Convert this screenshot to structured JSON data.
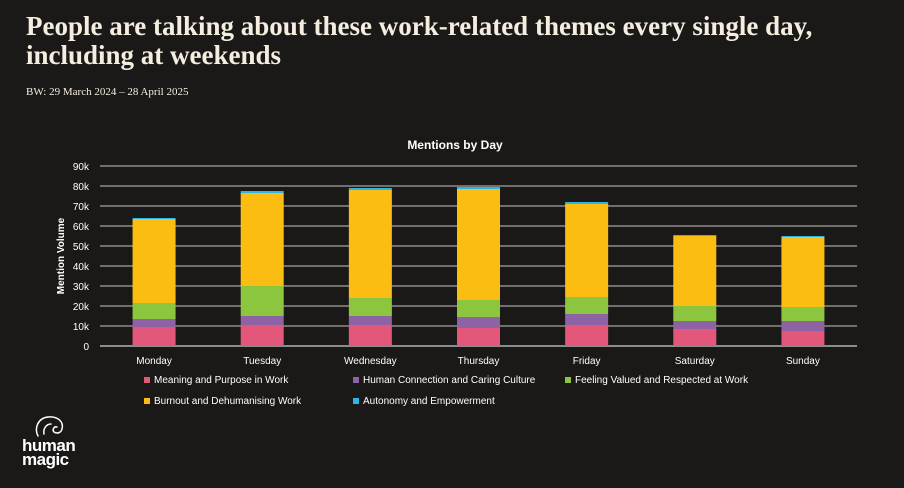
{
  "header": {
    "title": "People are talking about these work-related themes every single day, including at weekends",
    "subtitle": "BW: 29 March 2024 – 28 April 2025"
  },
  "logo": {
    "line1": "human",
    "line2": "magic"
  },
  "chart_data": {
    "type": "bar",
    "stacked": true,
    "title": "Mentions by Day",
    "ylabel": "Mention Volume",
    "xlabel": "",
    "ylim": [
      0,
      90000
    ],
    "yticks": [
      0,
      10000,
      20000,
      30000,
      40000,
      50000,
      60000,
      70000,
      80000,
      90000
    ],
    "ytick_labels": [
      "0",
      "10k",
      "20k",
      "30k",
      "40k",
      "50k",
      "60k",
      "70k",
      "80k",
      "90k"
    ],
    "grid": true,
    "legend_position": "bottom",
    "categories": [
      "Monday",
      "Tuesday",
      "Wednesday",
      "Thursday",
      "Friday",
      "Saturday",
      "Sunday"
    ],
    "series": [
      {
        "name": "Meaning and Purpose in Work",
        "color": "#e2577a",
        "values": [
          9500,
          10500,
          10500,
          9000,
          10500,
          8500,
          7500
        ]
      },
      {
        "name": "Human Connection and Caring Culture",
        "color": "#8d63a6",
        "values": [
          4000,
          4500,
          4500,
          5500,
          5500,
          4000,
          5000
        ]
      },
      {
        "name": "Feeling Valued and Respected at Work",
        "color": "#8cc63f",
        "values": [
          8000,
          15000,
          9000,
          8500,
          8500,
          7500,
          7000
        ]
      },
      {
        "name": "Burnout and Dehumanising Work",
        "color": "#fbbd12",
        "values": [
          42000,
          46500,
          54000,
          55500,
          46500,
          35000,
          35000
        ]
      },
      {
        "name": "Autonomy and Empowerment",
        "color": "#29b6e8",
        "values": [
          500,
          1000,
          1000,
          1000,
          1000,
          500,
          500
        ]
      }
    ]
  }
}
